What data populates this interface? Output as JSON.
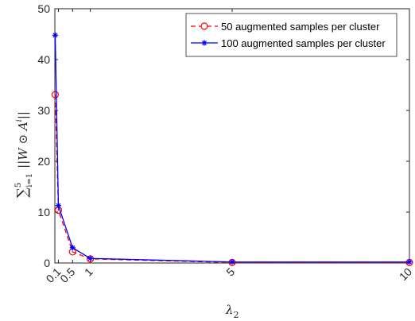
{
  "chart_data": {
    "type": "line",
    "x": [
      0.01,
      0.1,
      0.5,
      1,
      5,
      10
    ],
    "x_tick_labels": [
      "0.1",
      "0.5",
      "1",
      "5",
      "10"
    ],
    "x_tick_values": [
      0.1,
      0.5,
      1,
      5,
      10
    ],
    "xlim": [
      0,
      10
    ],
    "y_ticks": [
      0,
      10,
      20,
      30,
      40,
      50
    ],
    "ylim": [
      0,
      50
    ],
    "xlabel": "λ",
    "xlabel_sub": "2",
    "ylabel": "∑ ||W ⊙ A||",
    "ylabel_sum_upper": "5",
    "ylabel_sum_lower": "i=1",
    "ylabel_sup": "i",
    "legend_position": "top-right",
    "series": [
      {
        "name": "50 augmented samples per cluster",
        "color": "#ff0000",
        "line_style": "dashed",
        "marker": "circle",
        "values": [
          33.1,
          10.4,
          2.2,
          0.8,
          0.1,
          0.1
        ]
      },
      {
        "name": "100 augmented samples per cluster",
        "color": "#0000ff",
        "line_style": "solid",
        "marker": "star",
        "values": [
          44.8,
          11.3,
          3.0,
          0.9,
          0.2,
          0.2
        ]
      }
    ]
  }
}
